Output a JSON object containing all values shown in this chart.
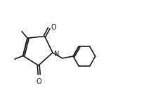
{
  "bg_color": "#ffffff",
  "line_color": "#1a1a1a",
  "line_width": 1.2,
  "font_size": 7.0,
  "atoms": {
    "N_label": "N",
    "O1_label": "O",
    "O2_label": "O"
  },
  "figsize": [
    2.22,
    1.38
  ],
  "dpi": 100,
  "xlim": [
    0.0,
    10.5
  ],
  "ylim": [
    0.5,
    6.5
  ]
}
